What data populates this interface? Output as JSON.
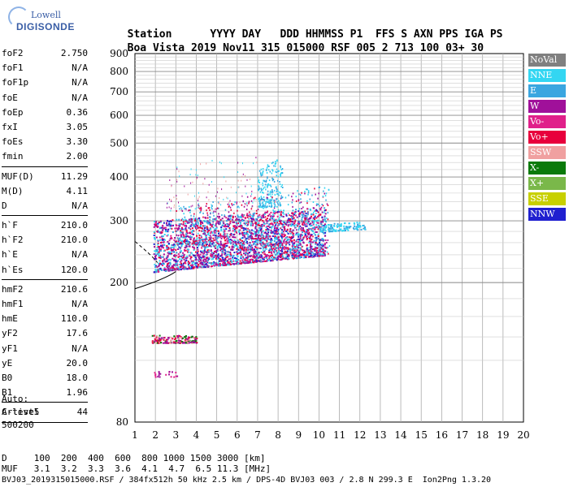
{
  "logo": {
    "line1": "Lowell",
    "line2": "DIGISONDE"
  },
  "header": {
    "row1": [
      "Station",
      "YYYY",
      "DAY",
      "DDD",
      "HHMMSS",
      "P1",
      "FFS",
      "S",
      "AXN",
      "PPS",
      "IGA",
      "PS"
    ],
    "row2": [
      "Boa Vista",
      "2019",
      "Nov11",
      "315",
      "015000",
      "RSF",
      "005",
      "2",
      "713",
      "100",
      "03+",
      "30"
    ]
  },
  "params": {
    "group1": [
      {
        "label": "foF2",
        "value": "2.750"
      },
      {
        "label": "foF1",
        "value": "N/A"
      },
      {
        "label": "foF1p",
        "value": "N/A"
      },
      {
        "label": "foE",
        "value": "N/A"
      },
      {
        "label": "foEp",
        "value": "0.36"
      },
      {
        "label": "fxI",
        "value": "3.05"
      },
      {
        "label": "foEs",
        "value": "3.30"
      },
      {
        "label": "fmin",
        "value": "2.00"
      }
    ],
    "group2": [
      {
        "label": "MUF(D)",
        "value": "11.29"
      },
      {
        "label": "M(D)",
        "value": "4.11"
      },
      {
        "label": "D",
        "value": "N/A"
      }
    ],
    "group3": [
      {
        "label": "h`F",
        "value": "210.0"
      },
      {
        "label": "h`F2",
        "value": "210.0"
      },
      {
        "label": "h`E",
        "value": "N/A"
      },
      {
        "label": "h`Es",
        "value": "120.0"
      }
    ],
    "group4": [
      {
        "label": "hmF2",
        "value": "210.6"
      },
      {
        "label": "hmF1",
        "value": "N/A"
      },
      {
        "label": "hmE",
        "value": "110.0"
      },
      {
        "label": "yF2",
        "value": "17.6"
      },
      {
        "label": "yF1",
        "value": "N/A"
      },
      {
        "label": "yE",
        "value": "20.0"
      },
      {
        "label": "B0",
        "value": "18.0"
      },
      {
        "label": "B1",
        "value": "1.96"
      }
    ],
    "group5": [
      {
        "label": "C-level",
        "value": "44"
      }
    ]
  },
  "auto": {
    "line1": "Auto:",
    "line2": "Artist5",
    "line3": "500200"
  },
  "legend": [
    {
      "label": "NoVal",
      "color": "#808080"
    },
    {
      "label": "NNE",
      "color": "#33d6f2"
    },
    {
      "label": "E",
      "color": "#3aa6e0"
    },
    {
      "label": "W",
      "color": "#a0109a"
    },
    {
      "label": "Vo-",
      "color": "#e0208a"
    },
    {
      "label": "Vo+",
      "color": "#e8003c"
    },
    {
      "label": "SSW",
      "color": "#f0a0a0"
    },
    {
      "label": "X-",
      "color": "#0a7a0a"
    },
    {
      "label": "X+",
      "color": "#7ab84a"
    },
    {
      "label": "SSE",
      "color": "#c8d000"
    },
    {
      "label": "NNW",
      "color": "#2020d0"
    }
  ],
  "chart_data": {
    "type": "scatter",
    "xlim": [
      1,
      20
    ],
    "ylim": [
      80,
      900
    ],
    "x_ticks": [
      1,
      2,
      3,
      4,
      5,
      6,
      7,
      8,
      9,
      10,
      11,
      12,
      13,
      14,
      15,
      16,
      17,
      18,
      19,
      20
    ],
    "y_ticks": [
      80,
      200,
      300,
      400,
      500,
      600,
      700,
      800,
      900
    ],
    "y_scale": "log",
    "grid": true
  },
  "bottom": {
    "d_row": "D     100  200  400  600  800 1000 1500 3000 [km]",
    "muf_row": "MUF   3.1  3.2  3.3  3.6  4.1  4.7  6.5 11.3 [MHz]",
    "footer": "BVJ03_2019315015000.RSF / 384fx512h 50 kHz 2.5 km / DPS-4D BVJ03 003 / 2.8 N 299.3 E  Ion2Png 1.3.20"
  }
}
